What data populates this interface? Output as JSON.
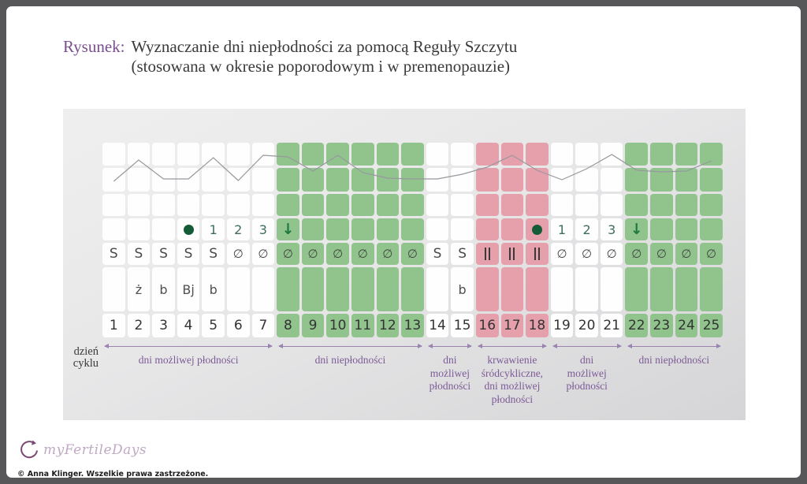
{
  "figure": {
    "label": "Rysunek:",
    "title_line1": "Wyznaczanie dni niepłodności za pomocą Reguły Szczytu",
    "title_line2": "(stosowana w okresie poporodowym i w premenopauzie)"
  },
  "axis": {
    "row_label_line1": "dzień",
    "row_label_line2": "cyklu"
  },
  "colors": {
    "green_cell": "#90c48c",
    "pink_cell": "#e6a0ac",
    "white_cell": "#fefefe",
    "accent_purple": "#7b4e91",
    "segment_purple": "#7c5a96",
    "dot_green": "#145c38",
    "arrow_green": "#1e7a3f",
    "temp_line_gray": "#98989e"
  },
  "chart_data": {
    "type": "table",
    "title": "Wyznaczanie dni niepłodności za pomocą Reguły Szczytu (stosowana w okresie poporodowym i w premenopauzie)",
    "days": [
      1,
      2,
      3,
      4,
      5,
      6,
      7,
      8,
      9,
      10,
      11,
      12,
      13,
      14,
      15,
      16,
      17,
      18,
      19,
      20,
      21,
      22,
      23,
      24,
      25
    ],
    "day_colors": [
      "white",
      "white",
      "white",
      "white",
      "white",
      "white",
      "white",
      "green",
      "green",
      "green",
      "green",
      "green",
      "green",
      "white",
      "white",
      "pink",
      "pink",
      "pink",
      "white",
      "white",
      "white",
      "green",
      "green",
      "green",
      "green"
    ],
    "peak_row": [
      "",
      "",
      "",
      "dot",
      "1",
      "2",
      "3",
      "arrow",
      "",
      "",
      "",
      "",
      "",
      "",
      "",
      "",
      "",
      "dot",
      "1",
      "2",
      "3",
      "arrow",
      "",
      "",
      ""
    ],
    "symbol_row": [
      "S",
      "S",
      "S",
      "S",
      "S",
      "∅",
      "∅",
      "∅",
      "∅",
      "∅",
      "∅",
      "∅",
      "∅",
      "S",
      "S",
      "‖",
      "‖",
      "‖",
      "∅",
      "∅",
      "∅",
      "∅",
      "∅",
      "∅",
      "∅"
    ],
    "letter_row": [
      "",
      "ż",
      "b",
      "Bj",
      "b",
      "",
      "",
      "",
      "",
      "",
      "",
      "",
      "",
      "",
      "b",
      "",
      "",
      "",
      "",
      "",
      "",
      "",
      "",
      "",
      ""
    ],
    "temperature_line_y": [
      49,
      22,
      46,
      46,
      19,
      48,
      16,
      18,
      36,
      16,
      38,
      45,
      46,
      46,
      40,
      31,
      16,
      35,
      47,
      33,
      15,
      35,
      37,
      36,
      23
    ],
    "segments": [
      {
        "from": 1,
        "to": 7,
        "label": "dni możliwej płodności"
      },
      {
        "from": 8,
        "to": 13,
        "label": "dni niepłodności"
      },
      {
        "from": 14,
        "to": 15,
        "label": "dni możliwej płodności"
      },
      {
        "from": 16,
        "to": 18,
        "label": "krwawienie śródcykliczne, dni możliwej płodności"
      },
      {
        "from": 19,
        "to": 21,
        "label": "dni możliwej płodności"
      },
      {
        "from": 22,
        "to": 25,
        "label": "dni niepłodności"
      }
    ],
    "legend_position": "bottom",
    "grid": true
  },
  "footer": {
    "logo_text": "myFertileDays",
    "copyright": "© Anna Klinger. Wszelkie prawa zastrzeżone."
  }
}
